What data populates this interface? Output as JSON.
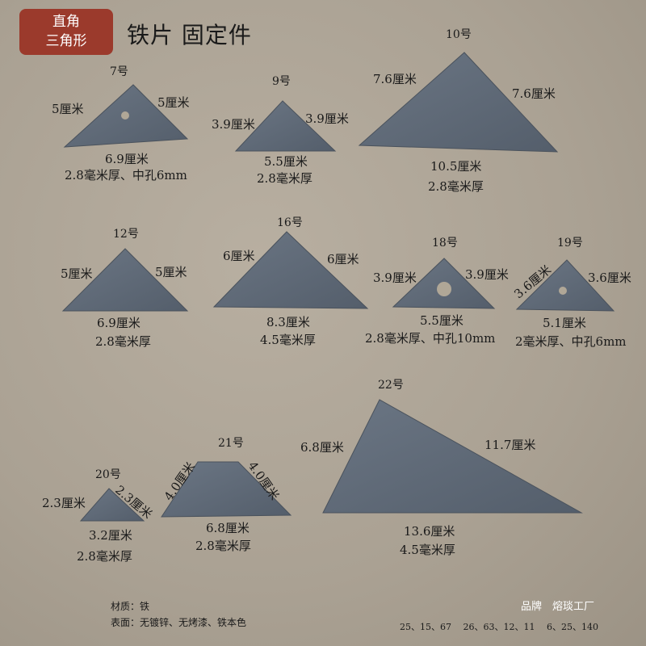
{
  "badge": {
    "line1": "直角",
    "line2": "三角形"
  },
  "title": "铁片 固定件",
  "plate_color": "#5f6a78",
  "items": {
    "p7": {
      "no": "7号",
      "left": "5厘米",
      "right": "5厘米",
      "base": "6.9厘米",
      "spec": "2.8毫米厚、中孔6mm"
    },
    "p9": {
      "no": "9号",
      "left": "3.9厘米",
      "right": "3.9厘米",
      "base": "5.5厘米",
      "spec": "2.8毫米厚"
    },
    "p10": {
      "no": "10号",
      "left": "7.6厘米",
      "right": "7.6厘米",
      "base": "10.5厘米",
      "spec": "2.8毫米厚"
    },
    "p12": {
      "no": "12号",
      "left": "5厘米",
      "right": "5厘米",
      "base": "6.9厘米",
      "spec": "2.8毫米厚"
    },
    "p16": {
      "no": "16号",
      "left": "6厘米",
      "right": "6厘米",
      "base": "8.3厘米",
      "spec": "4.5毫米厚"
    },
    "p18": {
      "no": "18号",
      "left": "3.9厘米",
      "right": "3.9厘米",
      "base": "5.5厘米",
      "spec": "2.8毫米厚、中孔10mm"
    },
    "p19": {
      "no": "19号",
      "left": "3.6厘米",
      "right": "3.6厘米",
      "base": "5.1厘米",
      "spec": "2毫米厚、中孔6mm"
    },
    "p20": {
      "no": "20号",
      "left": "2.3厘米",
      "right": "2.3厘米",
      "base": "3.2厘米",
      "spec": "2.8毫米厚"
    },
    "p21": {
      "no": "21号",
      "left": "4.0厘米",
      "right": "4.0厘米",
      "base": "6.8厘米",
      "spec": "2.8毫米厚"
    },
    "p22": {
      "no": "22号",
      "left": "6.8厘米",
      "right": "11.7厘米",
      "base": "13.6厘米",
      "spec": "4.5毫米厚"
    }
  },
  "footer": {
    "material": "材质：铁",
    "surface": "表面：无镀锌、无烤漆、铁本色",
    "brand": "品牌　熔琰工厂",
    "codes": "25、15、67　 26、63、12、11　 6、25、140"
  }
}
